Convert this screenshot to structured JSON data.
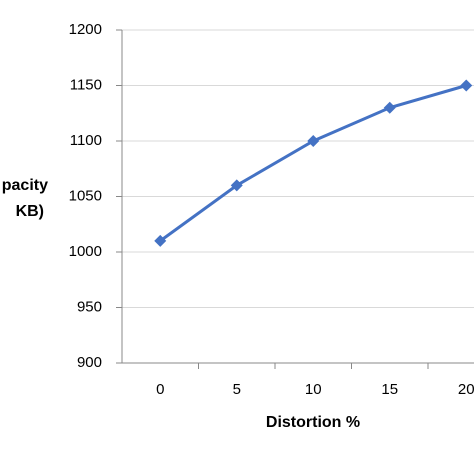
{
  "chart_data": {
    "type": "line",
    "y_title_lines": [
      "pacity",
      "KB)"
    ],
    "x_title": "Distortion %",
    "categories": [
      "0",
      "5",
      "10",
      "15",
      "20"
    ],
    "series": [
      {
        "color": "#4472c4",
        "values": [
          1010,
          1060,
          1100,
          1130,
          1150
        ]
      }
    ],
    "ylim": [
      900,
      1200
    ],
    "yticks": [
      900,
      950,
      1000,
      1050,
      1100,
      1150,
      1200
    ],
    "grid": true
  }
}
